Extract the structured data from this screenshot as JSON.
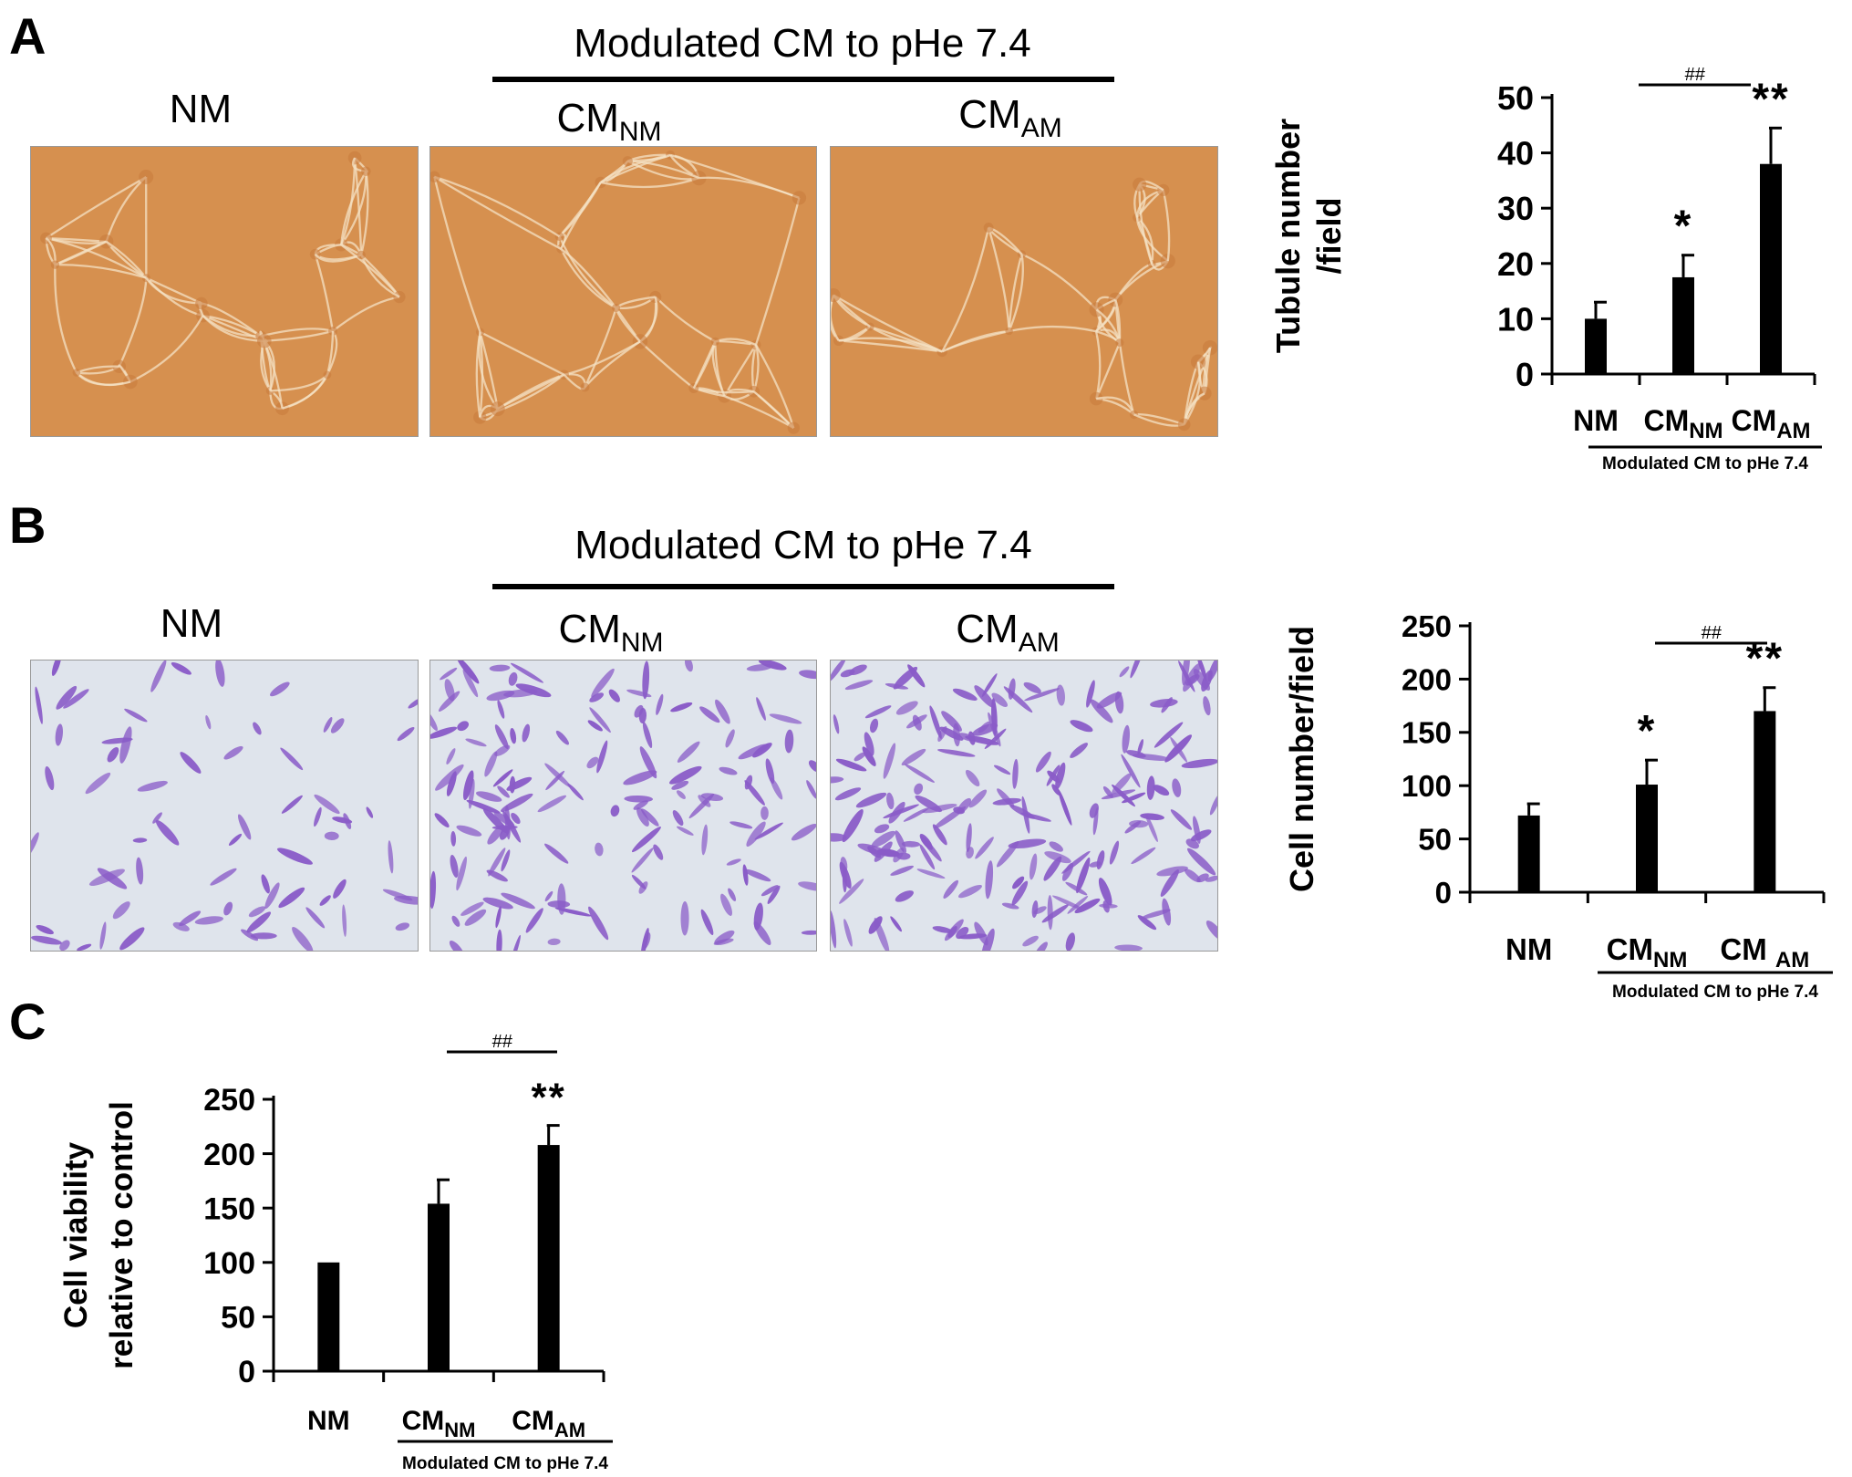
{
  "panels": {
    "A": {
      "letter": "A",
      "group_title": "Modulated CM to pHe 7.4",
      "images": [
        {
          "label": "NM",
          "sub": ""
        },
        {
          "label": "CM",
          "sub": "NM"
        },
        {
          "label": "CM",
          "sub": "AM"
        }
      ],
      "image_style": {
        "background": "#d6904f",
        "cell_color": "#f4e2c4"
      }
    },
    "B": {
      "letter": "B",
      "group_title": "Modulated CM to pHe 7.4",
      "images": [
        {
          "label": "NM",
          "sub": ""
        },
        {
          "label": "CM",
          "sub": "NM"
        },
        {
          "label": "CM",
          "sub": "AM"
        }
      ],
      "image_style": {
        "background": "#dfe4ec",
        "cell_color": "#8a5cc8"
      }
    },
    "C": {
      "letter": "C"
    }
  },
  "chart_data": [
    {
      "type": "bar",
      "panel": "A",
      "ylabel": [
        "Tubule number",
        "/field"
      ],
      "ylim": [
        0,
        50
      ],
      "yticks": [
        0,
        10,
        20,
        30,
        40,
        50
      ],
      "categories": [
        {
          "label": "NM",
          "sub": ""
        },
        {
          "label": "CM",
          "sub": "NM"
        },
        {
          "label": "CM",
          "sub": "AM"
        }
      ],
      "values": [
        10,
        17.5,
        38
      ],
      "errors": [
        3,
        4,
        6.5
      ],
      "stars": [
        "",
        "*",
        "**"
      ],
      "bracket": {
        "label": "##",
        "from": 1,
        "to": 2
      },
      "group_label": "Modulated CM to pHe 7.4",
      "bar_color": "#000000"
    },
    {
      "type": "bar",
      "panel": "B",
      "ylabel": [
        "Cell number/field"
      ],
      "ylim": [
        0,
        250
      ],
      "yticks": [
        0,
        50,
        100,
        150,
        200,
        250
      ],
      "categories": [
        {
          "label": "NM",
          "sub": ""
        },
        {
          "label": "CM",
          "sub": "NM"
        },
        {
          "label": "CM ",
          "sub": "AM"
        }
      ],
      "values": [
        72,
        101,
        170
      ],
      "errors": [
        11,
        23,
        22
      ],
      "stars": [
        "",
        "*",
        "**"
      ],
      "bracket": {
        "label": "##",
        "from": 1,
        "to": 2
      },
      "group_label": "Modulated CM to pHe 7.4",
      "bar_color": "#000000"
    },
    {
      "type": "bar",
      "panel": "C",
      "ylabel": [
        "Cell viability",
        "relative to control"
      ],
      "ylim": [
        0,
        250
      ],
      "yticks": [
        0,
        50,
        100,
        150,
        200,
        250
      ],
      "categories": [
        {
          "label": "NM",
          "sub": ""
        },
        {
          "label": "CM",
          "sub": "NM"
        },
        {
          "label": "CM",
          "sub": "AM"
        }
      ],
      "values": [
        100,
        154,
        208
      ],
      "errors": [
        0,
        22,
        18
      ],
      "stars": [
        "",
        "",
        "**"
      ],
      "bracket": {
        "label": "##",
        "from": 1,
        "to": 2
      },
      "group_label": "Modulated CM to pHe 7.4",
      "bar_color": "#000000"
    }
  ]
}
